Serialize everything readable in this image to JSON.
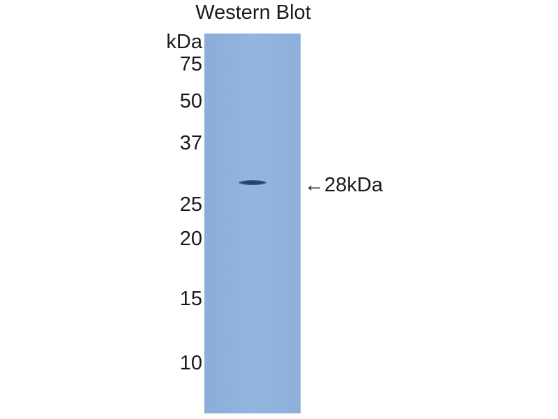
{
  "title": "Western Blot",
  "unit_label": "kDa",
  "markers": [
    "75",
    "50",
    "37",
    "25",
    "20",
    "15",
    "10"
  ],
  "band_annotation": "←28kDa",
  "colors": {
    "membrane": "#8fb2dc",
    "band": "#1c3a66"
  }
}
